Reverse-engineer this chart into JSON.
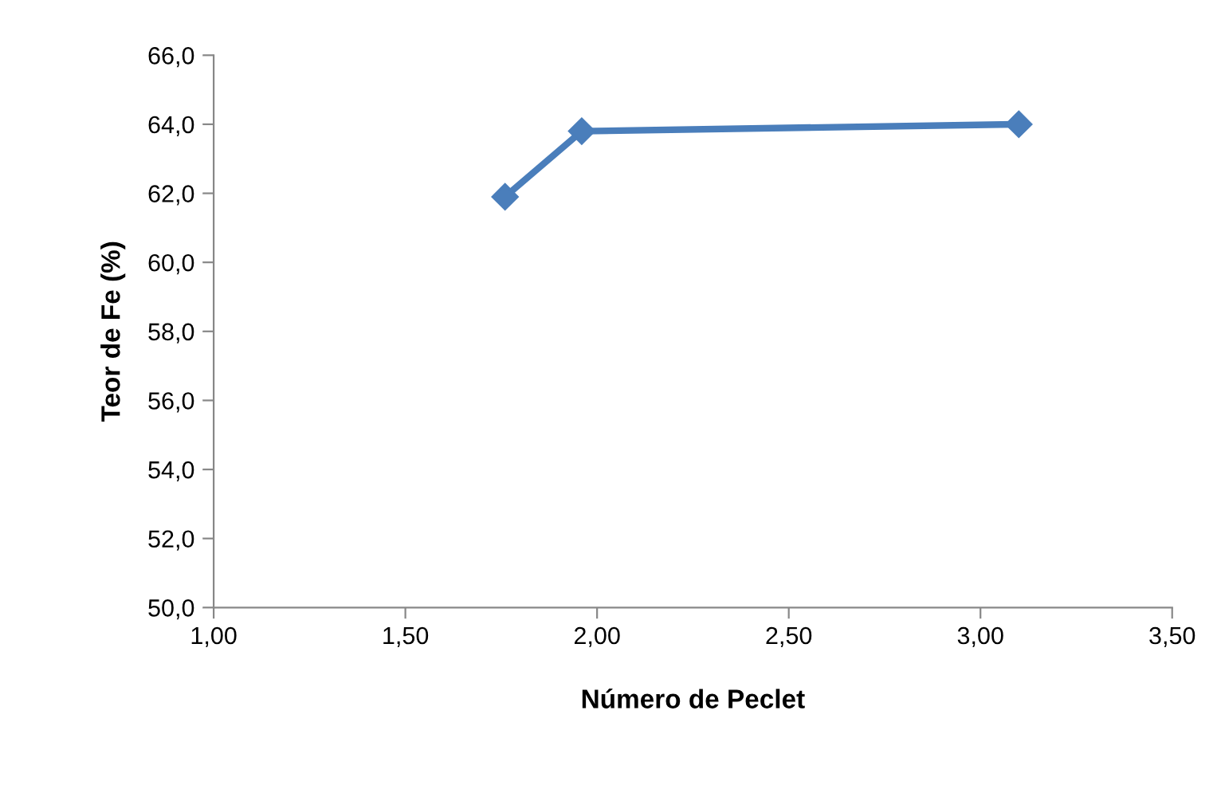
{
  "chart_data": {
    "type": "line",
    "xlabel": "Número de Peclet",
    "ylabel": "Teor de Fe (%)",
    "x": [
      1.76,
      1.96,
      3.1
    ],
    "series": [
      {
        "color": "#4a7ebb",
        "values": [
          61.9,
          63.8,
          64.0
        ]
      }
    ],
    "xlim": [
      1.0,
      3.5
    ],
    "xticks": [
      {
        "value": 1.0,
        "label": "1,00"
      },
      {
        "value": 1.5,
        "label": "1,50"
      },
      {
        "value": 2.0,
        "label": "2,00"
      },
      {
        "value": 2.5,
        "label": "2,50"
      },
      {
        "value": 3.0,
        "label": "3,00"
      },
      {
        "value": 3.5,
        "label": "3,50"
      }
    ],
    "ylim": [
      50,
      66
    ],
    "yticks": [
      {
        "value": 50,
        "label": "50,0"
      },
      {
        "value": 52,
        "label": "52,0"
      },
      {
        "value": 54,
        "label": "54,0"
      },
      {
        "value": 56,
        "label": "56,0"
      },
      {
        "value": 58,
        "label": "58,0"
      },
      {
        "value": 60,
        "label": "60,0"
      },
      {
        "value": 62,
        "label": "62,0"
      },
      {
        "value": 64,
        "label": "64,0"
      },
      {
        "value": 66,
        "label": "66,0"
      }
    ],
    "grid": false,
    "legend": false,
    "marker": "diamond",
    "line_style": "solid"
  }
}
